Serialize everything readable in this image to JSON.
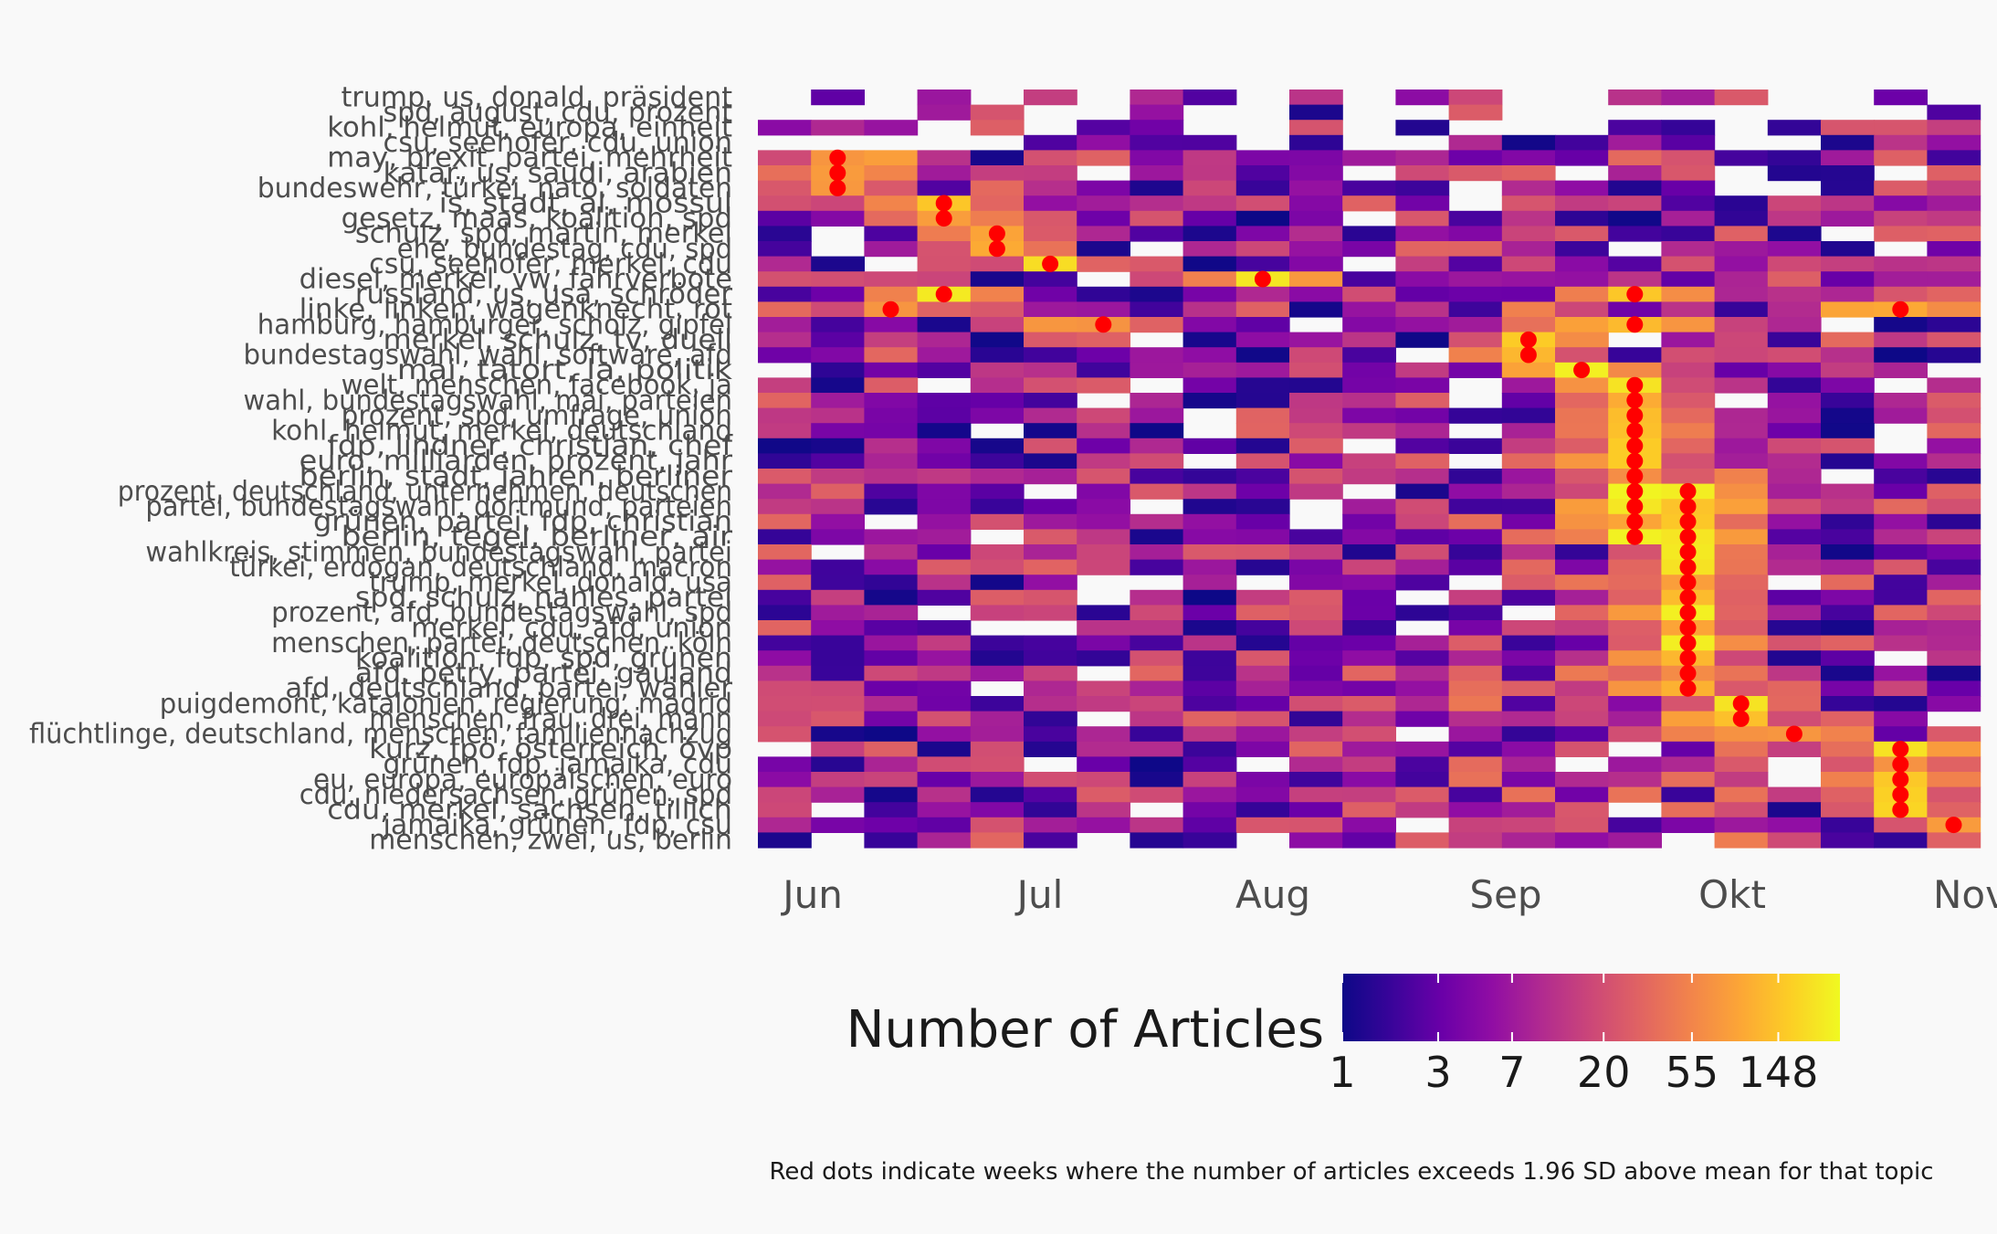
{
  "chart_data": {
    "type": "heatmap",
    "xlabel": "",
    "ylabel": "",
    "x_axis": {
      "months": [
        "Jun",
        "Jul",
        "Aug",
        "Sep",
        "Okt",
        "Nov"
      ],
      "n_weeks": 23,
      "first_week": "Jun 01"
    },
    "topics": [
      "trump, us, donald, präsident",
      "spd, august, cdu, prozent",
      "kohl, helmut, europa, einheit",
      "csu, seehofer, cdu, union",
      "may, brexit, partei, mehrheit",
      "katar, us, saudi, arabien",
      "bundeswehr, türkei, nato, soldaten",
      "is, stadt, al, mossul",
      "gesetz, maas, koalition, spd",
      "schulz, spd, martin, merkel",
      "ehe, bundestag, cdu, spd",
      "csu, seehofer, merkel, cdu",
      "diesel, merkel, vw, fahrverbote",
      "russland, us, usa, schröder",
      "linke, linken, wagenknecht, rot",
      "hamburg, hamburger, scholz, gipfel",
      "merkel, schulz, tv, duell",
      "bundestagswahl, wahl, software, afd",
      "mai, tatort, la, politik",
      "welt, menschen, facebook, ja",
      "wahl, bundestagswahl, mai, parteien",
      "prozent, spd, umfrage, union",
      "kohl, helmut, merkel, deutschland",
      "fdp, lindner, christian, chef",
      "euro, milliarden, prozent, jahr",
      "berlin, stadt, jahren, berliner",
      "prozent, deutschland, unternehmen, deutschen",
      "partei, bundestagswahl, dortmund, parteien",
      "grünen, partei, fdp, christian",
      "berlin, tegel, berliner, air",
      "wahlkreis, stimmen, bundestagswahl, partei",
      "türkei, erdogan, deutschland, macron",
      "trump, merkel, donald, usa",
      "spd, schulz, nahles, partei",
      "prozent, afd, bundestagswahl, spd",
      "merkel, cdu, afd, union",
      "menschen, partei, deutschen, köln",
      "koalition, fdp, spd, grünen",
      "afd, petry, partei, gauland",
      "afd, deutschland, partei, wähler",
      "puigdemont, katalonien, regierung, madrid",
      "menschen, frau, drei, mann",
      "flüchtlinge, deutschland, menschen, familiennachzug",
      "kurz, fpö, österreich, övp",
      "grünen, fdp, jamaika, cdu",
      "eu, europa, europäischen, euro",
      "cdu, niedersachsen, grünen, spd",
      "cdu, merkel, sachsen, tillich",
      "jamaika, grünen, fdp, csu",
      "menschen, zwei, us, berlin"
    ],
    "spikes": [
      [
        4,
        1
      ],
      [
        5,
        1
      ],
      [
        6,
        1
      ],
      [
        7,
        3
      ],
      [
        8,
        3
      ],
      [
        9,
        4
      ],
      [
        10,
        4
      ],
      [
        11,
        5
      ],
      [
        12,
        9
      ],
      [
        13,
        3
      ],
      [
        13,
        16
      ],
      [
        14,
        2
      ],
      [
        14,
        21
      ],
      [
        15,
        6
      ],
      [
        15,
        16
      ],
      [
        16,
        14
      ],
      [
        17,
        14
      ],
      [
        18,
        15
      ],
      [
        19,
        16
      ],
      [
        20,
        16
      ],
      [
        21,
        16
      ],
      [
        22,
        16
      ],
      [
        23,
        16
      ],
      [
        24,
        16
      ],
      [
        25,
        16
      ],
      [
        26,
        16
      ],
      [
        27,
        16
      ],
      [
        28,
        16
      ],
      [
        29,
        16
      ],
      [
        26,
        17
      ],
      [
        27,
        17
      ],
      [
        28,
        17
      ],
      [
        29,
        17
      ],
      [
        30,
        17
      ],
      [
        31,
        17
      ],
      [
        32,
        17
      ],
      [
        33,
        17
      ],
      [
        34,
        17
      ],
      [
        35,
        17
      ],
      [
        36,
        17
      ],
      [
        37,
        17
      ],
      [
        38,
        17
      ],
      [
        39,
        17
      ],
      [
        40,
        18
      ],
      [
        41,
        18
      ],
      [
        42,
        19
      ],
      [
        43,
        21
      ],
      [
        44,
        21
      ],
      [
        45,
        21
      ],
      [
        46,
        21
      ],
      [
        47,
        21
      ],
      [
        48,
        22
      ],
      [
        49,
        23
      ]
    ],
    "legend": {
      "title": "Number of Articles",
      "ticks": [
        "1",
        "3",
        "7",
        "20",
        "55",
        "148"
      ],
      "scale": "log",
      "min": 1,
      "max": 300,
      "colormap": [
        "#0d0887",
        "#3a049a",
        "#6a00a8",
        "#900da4",
        "#b12a90",
        "#cc4778",
        "#e16462",
        "#f2844b",
        "#fca636",
        "#fcce25",
        "#f0f921"
      ]
    },
    "caption": "Red dots indicate weeks where the number of articles exceeds 1.96 SD above mean for that topic",
    "spike_color": "#ff0000"
  }
}
